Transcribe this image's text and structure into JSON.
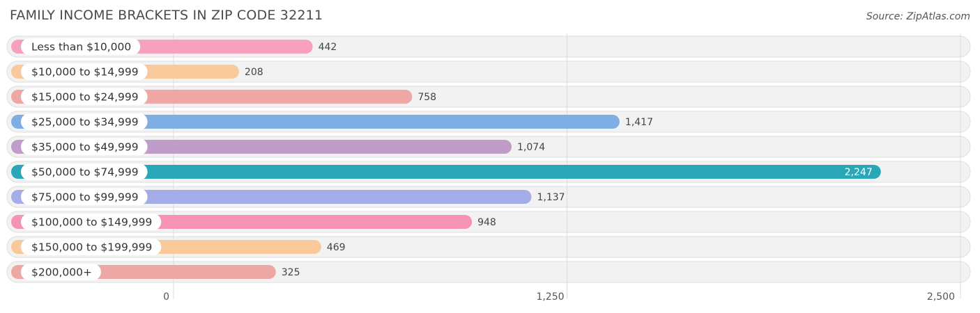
{
  "title": "FAMILY INCOME BRACKETS IN ZIP CODE 32211",
  "source": "Source: ZipAtlas.com",
  "chart_data": {
    "type": "bar",
    "orientation": "horizontal",
    "categories": [
      "Less than $10,000",
      "$10,000 to $14,999",
      "$15,000 to $24,999",
      "$25,000 to $34,999",
      "$35,000 to $49,999",
      "$50,000 to $74,999",
      "$75,000 to $99,999",
      "$100,000 to $149,999",
      "$150,000 to $199,999",
      "$200,000+"
    ],
    "values": [
      442,
      208,
      758,
      1417,
      1074,
      2247,
      1137,
      948,
      469,
      325
    ],
    "value_labels": [
      "442",
      "208",
      "758",
      "1,417",
      "1,074",
      "2,247",
      "1,137",
      "948",
      "469",
      "325"
    ],
    "colors": [
      "#f7a1bd",
      "#f9c99b",
      "#eea7a4",
      "#7eaee3",
      "#c09cc8",
      "#29a7b8",
      "#a5ade8",
      "#f692b2",
      "#f9c99b",
      "#eea7a4"
    ],
    "highlight_index": 5,
    "xlim": [
      0,
      2500
    ],
    "xticks": [
      0,
      1250,
      2500
    ],
    "xtick_labels": [
      "0",
      "1,250",
      "2,500"
    ],
    "grid": true
  }
}
